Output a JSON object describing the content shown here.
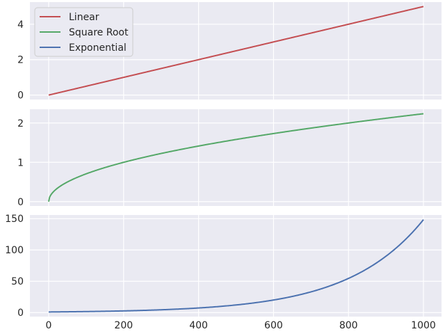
{
  "chart_data": {
    "type": "line",
    "layout": "3 stacked subplots sharing x-axis",
    "x_range": [
      0,
      1000
    ],
    "x_ticks": [
      0,
      200,
      400,
      600,
      800,
      1000
    ],
    "legend_placement": "top-left of top panel",
    "grid": true,
    "series": [
      {
        "name": "Linear",
        "color": "#c44e52",
        "function": "y = x / 200",
        "points": [
          [
            0,
            0
          ],
          [
            200,
            1
          ],
          [
            400,
            2
          ],
          [
            600,
            3
          ],
          [
            800,
            4
          ],
          [
            1000,
            5
          ]
        ],
        "ylim": [
          -0.25,
          5.25
        ],
        "y_ticks": [
          0,
          2,
          4
        ]
      },
      {
        "name": "Square Root",
        "color": "#55a868",
        "function": "y = sqrt(x / 200)",
        "points": [
          [
            0,
            0
          ],
          [
            200,
            1
          ],
          [
            400,
            1.414
          ],
          [
            600,
            1.732
          ],
          [
            800,
            2
          ],
          [
            1000,
            2.236
          ]
        ],
        "ylim": [
          -0.11,
          2.35
        ],
        "y_ticks": [
          0,
          1,
          2
        ]
      },
      {
        "name": "Exponential",
        "color": "#4c72b0",
        "function": "y = exp(x / 200)",
        "points": [
          [
            0,
            1
          ],
          [
            200,
            2.718
          ],
          [
            400,
            7.389
          ],
          [
            600,
            20.09
          ],
          [
            800,
            54.6
          ],
          [
            1000,
            148.4
          ]
        ],
        "ylim": [
          -6.4,
          155.8
        ],
        "y_ticks": [
          0,
          50,
          100,
          150
        ]
      }
    ]
  }
}
